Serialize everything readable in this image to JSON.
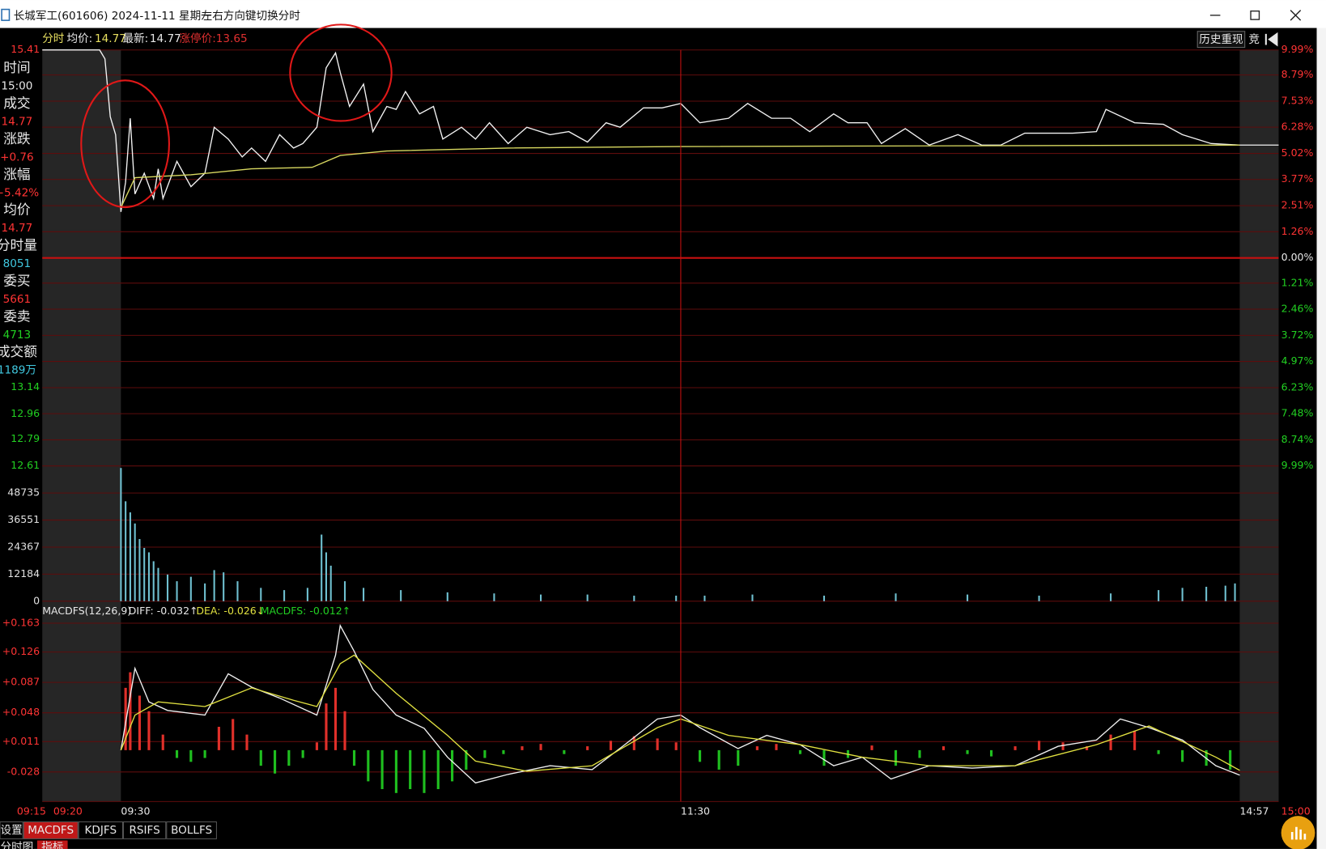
{
  "window": {
    "title": "长城军工(601606) 2024-11-11 星期一",
    "hint": "左右方向键切换分时"
  },
  "header": {
    "mode": "分时",
    "avg_label": "均价:",
    "avg": "14.77",
    "latest_label": "最新:",
    "latest": "14.77",
    "limit": "涨停价:13.65",
    "replay": "历史重现",
    "auction": "竞"
  },
  "info_panel": [
    {
      "label": "时间",
      "value": "15:00"
    },
    {
      "label": "成交",
      "value": "14.77"
    },
    {
      "label": "涨跌",
      "value": "+0.76"
    },
    {
      "label": "涨幅",
      "value": "+5.42%"
    },
    {
      "label": "均价",
      "value": "14.77"
    },
    {
      "label": "分时量",
      "value": "8051"
    },
    {
      "label": "委买",
      "value": "5661"
    },
    {
      "label": "委卖",
      "value": "4713"
    },
    {
      "label": "成交额",
      "value": "1189万"
    }
  ],
  "tabs": [
    "设置",
    "MACDFS",
    "KDJFS",
    "RSIFS",
    "BOLLFS"
  ],
  "subtabs": [
    "分时图",
    "指标"
  ],
  "chart_data": [
    {
      "type": "line",
      "ylim": [
        12.61,
        15.41
      ],
      "yticks": [
        12.61,
        12.79,
        12.96,
        13.14,
        15.41
      ],
      "y2lim": [
        -9.99,
        9.99
      ],
      "y2ticks": [
        {
          "value": 9.99,
          "label": "9.99%"
        },
        {
          "value": 8.79,
          "label": "8.79%"
        },
        {
          "value": 7.53,
          "label": "7.53%"
        },
        {
          "value": 6.28,
          "label": "6.28%"
        },
        {
          "value": 5.02,
          "label": "5.02%"
        },
        {
          "value": 3.77,
          "label": "3.77%"
        },
        {
          "value": 2.51,
          "label": "2.51%"
        },
        {
          "value": 1.26,
          "label": "1.26%"
        },
        {
          "value": 0,
          "label": "0.00%"
        },
        {
          "value": -1.21,
          "label": "1.21%"
        },
        {
          "value": -2.46,
          "label": "2.46%"
        },
        {
          "value": -3.72,
          "label": "3.72%"
        },
        {
          "value": -4.97,
          "label": "4.97%"
        },
        {
          "value": -6.23,
          "label": "6.23%"
        },
        {
          "value": -7.48,
          "label": "7.48%"
        },
        {
          "value": -8.74,
          "label": "8.74%"
        },
        {
          "value": -9.99,
          "label": "9.99%"
        }
      ],
      "series": [
        {
          "color": "#f2f2f2",
          "x": [
            "09:15",
            "09:26",
            "09:27",
            "09:28",
            "09:29",
            "09:30",
            "09:31",
            "09:32",
            "09:33",
            "09:35",
            "09:37",
            "09:38",
            "09:39",
            "09:42",
            "09:45",
            "09:48",
            "09:50",
            "09:53",
            "09:56",
            "09:58",
            "10:01",
            "10:04",
            "10:07",
            "10:09",
            "10:12",
            "10:14",
            "10:16",
            "10:17",
            "10:19",
            "10:22",
            "10:24",
            "10:27",
            "10:29",
            "10:31",
            "10:34",
            "10:37",
            "10:39",
            "10:43",
            "10:46",
            "10:49",
            "10:53",
            "10:57",
            "11:02",
            "11:06",
            "11:10",
            "11:14",
            "11:17",
            "11:22",
            "11:26",
            "11:30",
            "13:04",
            "13:10",
            "13:14",
            "13:19",
            "13:23",
            "13:27",
            "13:32",
            "13:35",
            "13:39",
            "13:42",
            "13:47",
            "13:52",
            "13:58",
            "14:03",
            "14:07",
            "14:12",
            "14:17",
            "14:22",
            "14:27",
            "14:29",
            "14:35",
            "14:41",
            "14:45",
            "14:51",
            "14:57",
            "15:00"
          ],
          "values": [
            15.41,
            15.41,
            15.35,
            14.96,
            14.84,
            14.32,
            14.52,
            14.95,
            14.44,
            14.58,
            14.41,
            14.61,
            14.41,
            14.66,
            14.49,
            14.58,
            14.89,
            14.81,
            14.69,
            14.75,
            14.66,
            14.84,
            14.75,
            14.78,
            14.89,
            15.29,
            15.39,
            15.26,
            15.03,
            15.18,
            14.86,
            15.03,
            15.01,
            15.13,
            14.98,
            15.03,
            14.81,
            14.89,
            14.81,
            14.92,
            14.78,
            14.89,
            14.84,
            14.86,
            14.79,
            14.92,
            14.89,
            15.02,
            15.02,
            15.05,
            14.92,
            14.95,
            15.05,
            14.95,
            14.95,
            14.86,
            14.98,
            14.92,
            14.92,
            14.78,
            14.88,
            14.77,
            14.84,
            14.77,
            14.77,
            14.85,
            14.85,
            14.85,
            14.86,
            15.01,
            14.92,
            14.91,
            14.84,
            14.78,
            14.77,
            14.77
          ]
        },
        {
          "color": "#d8d860",
          "x": [
            "09:30",
            "09:33",
            "09:45",
            "09:58",
            "10:11",
            "10:17",
            "10:27",
            "10:53",
            "11:30",
            "14:57"
          ],
          "values": [
            14.35,
            14.55,
            14.57,
            14.61,
            14.62,
            14.7,
            14.73,
            14.75,
            14.76,
            14.77
          ]
        }
      ]
    },
    {
      "type": "bar",
      "ylim": [
        0,
        60919
      ],
      "yticks": [
        0,
        12184,
        24367,
        36551,
        48735
      ],
      "color": "#6fc0d0",
      "x": [
        "09:30",
        "09:31",
        "09:32",
        "09:33",
        "09:34",
        "09:35",
        "09:36",
        "09:37",
        "09:38",
        "09:40",
        "09:42",
        "09:45",
        "09:48",
        "09:50",
        "09:52",
        "09:55",
        "10:00",
        "10:05",
        "10:10",
        "10:13",
        "10:14",
        "10:15",
        "10:18",
        "10:22",
        "10:30",
        "10:40",
        "10:50",
        "11:00",
        "11:10",
        "11:20",
        "11:29",
        "13:05",
        "13:15",
        "13:30",
        "13:45",
        "14:00",
        "14:15",
        "14:30",
        "14:40",
        "14:45",
        "14:50",
        "14:54",
        "14:56"
      ],
      "values": [
        60000,
        45000,
        40000,
        35000,
        28000,
        24000,
        22000,
        18000,
        15000,
        12000,
        9000,
        11000,
        8000,
        14000,
        13000,
        9000,
        6000,
        5000,
        6000,
        30000,
        22000,
        16000,
        9000,
        6000,
        5000,
        4000,
        3500,
        3000,
        3000,
        2500,
        2500,
        2500,
        3000,
        2500,
        3500,
        3000,
        2500,
        3500,
        5000,
        6000,
        6500,
        7000,
        8000
      ]
    },
    {
      "type": "macd",
      "indicator": "MACDFS(12,26,9)",
      "readouts": [
        "DIFF: -0.032↑",
        "DEA: -0.026↓",
        "MACDFS: -0.012↑"
      ],
      "ylim": [
        -0.066,
        0.163
      ],
      "yticks": [
        -0.028,
        {
          "value": 0.011,
          "label": "+0.011"
        },
        {
          "value": 0.048,
          "label": "+0.048"
        },
        {
          "value": 0.087,
          "label": "+0.087"
        },
        {
          "value": 0.126,
          "label": "+0.126"
        },
        {
          "value": 0.163,
          "label": "+0.163"
        }
      ],
      "xticks": [
        "09:15",
        "09:20",
        "09:30",
        "11:30",
        "14:57",
        "15:00"
      ],
      "series": [
        {
          "color": "#f0f0f0",
          "x": [
            "09:30",
            "09:33",
            "09:36",
            "09:40",
            "09:48",
            "09:53",
            "09:58",
            "10:04",
            "10:12",
            "10:16",
            "10:17",
            "10:20",
            "10:24",
            "10:29",
            "10:35",
            "10:40",
            "10:46",
            "10:53",
            "11:02",
            "11:11",
            "11:18",
            "11:25",
            "11:30",
            "13:04",
            "13:12",
            "13:18",
            "13:25",
            "13:32",
            "13:38",
            "13:44",
            "13:52",
            "14:01",
            "14:10",
            "14:19",
            "14:27",
            "14:32",
            "14:38",
            "14:45",
            "14:52",
            "14:57"
          ],
          "values": [
            0,
            0.105,
            0.062,
            0.051,
            0.045,
            0.098,
            0.081,
            0.067,
            0.045,
            0.122,
            0.16,
            0.127,
            0.078,
            0.045,
            0.028,
            -0.009,
            -0.042,
            -0.031,
            -0.02,
            -0.025,
            0.007,
            0.04,
            0.045,
            0.029,
            0.002,
            0.019,
            0.007,
            -0.02,
            -0.009,
            -0.037,
            -0.02,
            -0.023,
            -0.02,
            0.005,
            0.013,
            0.04,
            0.029,
            0.013,
            -0.02,
            -0.032
          ]
        },
        {
          "color": "#e0e040",
          "x": [
            "09:30",
            "09:33",
            "09:38",
            "09:48",
            "09:58",
            "10:07",
            "10:12",
            "10:17",
            "10:20",
            "10:29",
            "10:40",
            "10:46",
            "10:57",
            "11:11",
            "11:25",
            "11:30",
            "13:10",
            "13:25",
            "13:38",
            "13:52",
            "14:10",
            "14:27",
            "14:38",
            "14:52",
            "14:57"
          ],
          "values": [
            0,
            0.045,
            0.062,
            0.056,
            0.08,
            0.064,
            0.056,
            0.111,
            0.122,
            0.073,
            0.019,
            -0.014,
            -0.027,
            -0.02,
            0.029,
            0.04,
            0.019,
            0.007,
            -0.009,
            -0.02,
            -0.02,
            0.007,
            0.031,
            -0.009,
            -0.026
          ]
        }
      ],
      "histogram": {
        "up_color": "#e0302a",
        "down_color": "#1fbf1f",
        "x": [
          "09:31",
          "09:32",
          "09:34",
          "09:36",
          "09:39",
          "09:42",
          "09:45",
          "09:48",
          "09:51",
          "09:54",
          "09:57",
          "10:00",
          "10:03",
          "10:06",
          "10:09",
          "10:12",
          "10:14",
          "10:16",
          "10:18",
          "10:20",
          "10:23",
          "10:26",
          "10:29",
          "10:32",
          "10:35",
          "10:38",
          "10:41",
          "10:44",
          "10:48",
          "10:52",
          "10:56",
          "11:00",
          "11:05",
          "11:10",
          "11:15",
          "11:20",
          "11:25",
          "11:29",
          "13:04",
          "13:08",
          "13:12",
          "13:16",
          "13:20",
          "13:25",
          "13:30",
          "13:35",
          "13:40",
          "13:45",
          "13:50",
          "13:55",
          "14:00",
          "14:05",
          "14:10",
          "14:15",
          "14:20",
          "14:25",
          "14:30",
          "14:35",
          "14:40",
          "14:45",
          "14:50",
          "14:55"
        ],
        "values": [
          0.08,
          0.1,
          0.07,
          0.05,
          0.02,
          -0.01,
          -0.015,
          -0.01,
          0.03,
          0.04,
          0.02,
          -0.02,
          -0.03,
          -0.02,
          -0.01,
          0.01,
          0.06,
          0.08,
          0.05,
          -0.02,
          -0.04,
          -0.05,
          -0.055,
          -0.05,
          -0.055,
          -0.05,
          -0.04,
          -0.025,
          -0.01,
          -0.005,
          0.005,
          0.008,
          -0.005,
          0.005,
          0.012,
          0.018,
          0.015,
          0.01,
          -0.015,
          -0.025,
          -0.02,
          0.005,
          0.008,
          -0.005,
          -0.02,
          -0.01,
          0.006,
          -0.02,
          -0.01,
          0.005,
          -0.005,
          -0.008,
          0.005,
          0.012,
          0.01,
          0.005,
          0.02,
          0.025,
          -0.005,
          -0.015,
          -0.02,
          -0.025
        ]
      }
    }
  ]
}
